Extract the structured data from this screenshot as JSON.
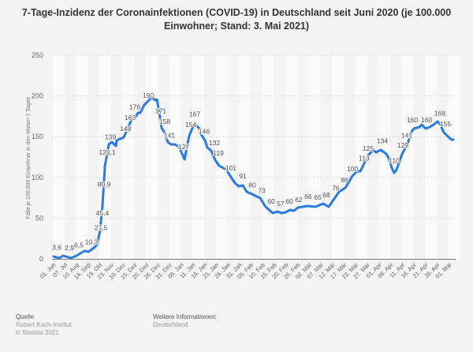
{
  "title": "7-Tage-Inzidenz der Coronainfektionen (COVID-19) in Deutschland seit Juni 2020 (je 100.000 Einwohner; Stand: 3. Mai 2021)",
  "footer": {
    "source_heading": "Quelle",
    "source": "Robert Koch-Institut",
    "copyright": "© Statista 2021",
    "info_heading": "Weitere Informationen:",
    "info": "Deutschland"
  },
  "chart_data": {
    "type": "line",
    "title": "7-Tage-Inzidenz der Coronainfektionen (COVID-19) in Deutschland seit Juni 2020 (je 100.000 Einwohner; Stand: 3. Mai 2021)",
    "xlabel": "",
    "ylabel": "Fälle je 100.000 Einwohner in den letzten 7 Tagen",
    "ylim": [
      0,
      250
    ],
    "yticks": [
      0,
      50,
      100,
      150,
      200,
      250
    ],
    "grid": true,
    "line_color": "#2a7be4",
    "categories": [
      "01. Jun",
      "07. Jul",
      "10. Aug",
      "14. Sep",
      "19. Okt",
      "23. Nov",
      "10. Dez",
      "15. Dez",
      "20. Dez",
      "26. Dez",
      "31. Dez",
      "06. Jan",
      "11. Jan",
      "16. Jan",
      "21. Jan",
      "26. Jan",
      "31. Jan",
      "05. Feb",
      "10. Feb",
      "15. Feb",
      "20. Feb",
      "25. Feb",
      "02. Mär",
      "07. Mär",
      "12. Mär",
      "17. Mär",
      "22. Mär",
      "27. Mär",
      "01. Apr",
      "06. Apr",
      "11. Apr",
      "16. Apr",
      "21. Apr",
      "26. Apr",
      "01. Mai"
    ],
    "series": [
      {
        "points": [
          [
            0,
            3
          ],
          [
            0.47,
            1
          ],
          [
            0.81,
            3.9
          ],
          [
            1.49,
            1
          ],
          [
            1.96,
            3.9
          ],
          [
            2.64,
            9.7
          ],
          [
            2.98,
            8.7
          ],
          [
            3.39,
            12.6
          ],
          [
            3.73,
            17.4
          ],
          [
            4.0,
            34.9
          ],
          [
            4.2,
            65.9
          ],
          [
            4.41,
            114.3
          ],
          [
            4.74,
            140.5
          ],
          [
            5.01,
            143.4
          ],
          [
            5.35,
            138.6
          ],
          [
            5.42,
            145.4
          ],
          [
            6.03,
            149.2
          ],
          [
            6.44,
            162.8
          ],
          [
            6.78,
            173.5
          ],
          [
            7.05,
            174.4
          ],
          [
            7.25,
            179.3
          ],
          [
            7.45,
            179.3
          ],
          [
            7.79,
            189
          ],
          [
            8.13,
            193.8
          ],
          [
            8.4,
            197.7
          ],
          [
            8.6,
            196.7
          ],
          [
            8.74,
            194.8
          ],
          [
            8.88,
            195.7
          ],
          [
            9.08,
            179.3
          ],
          [
            9.28,
            160.9
          ],
          [
            9.49,
            156
          ],
          [
            9.82,
            143.4
          ],
          [
            10.09,
            140.5
          ],
          [
            10.43,
            140.5
          ],
          [
            10.77,
            137.6
          ],
          [
            11.11,
            126.9
          ],
          [
            11.25,
            122.1
          ],
          [
            11.65,
            151.2
          ],
          [
            11.99,
            162.8
          ],
          [
            12.2,
            164.7
          ],
          [
            12.47,
            160.9
          ],
          [
            12.67,
            153.1
          ],
          [
            13.01,
            145.4
          ],
          [
            13.21,
            136.6
          ],
          [
            13.55,
            132.8
          ],
          [
            13.89,
            121.1
          ],
          [
            14.23,
            114.3
          ],
          [
            14.84,
            109.5
          ],
          [
            15.18,
            101.7
          ],
          [
            15.58,
            93
          ],
          [
            15.92,
            89.1
          ],
          [
            16.26,
            90.1
          ],
          [
            16.6,
            82.4
          ],
          [
            17.07,
            79.4
          ],
          [
            17.75,
            74.6
          ],
          [
            18.22,
            64
          ],
          [
            18.83,
            56.2
          ],
          [
            19.24,
            58.1
          ],
          [
            19.58,
            56.2
          ],
          [
            19.92,
            57.2
          ],
          [
            20.33,
            60.1
          ],
          [
            20.66,
            59.1
          ],
          [
            21.0,
            63
          ],
          [
            21.82,
            64.9
          ],
          [
            22.49,
            64
          ],
          [
            23.17,
            67.8
          ],
          [
            23.64,
            64
          ],
          [
            24.53,
            82.4
          ],
          [
            25.07,
            87.2
          ],
          [
            25.68,
            101.7
          ],
          [
            26.08,
            107.6
          ],
          [
            26.36,
            107.6
          ],
          [
            27.03,
            126.9
          ],
          [
            27.44,
            133.7
          ],
          [
            27.71,
            130.8
          ],
          [
            28.12,
            133.7
          ],
          [
            28.59,
            128.9
          ],
          [
            28.79,
            124
          ],
          [
            29.07,
            111.4
          ],
          [
            29.27,
            105.6
          ],
          [
            29.47,
            109.5
          ],
          [
            29.95,
            128.9
          ],
          [
            30.42,
            141.5
          ],
          [
            30.76,
            156
          ],
          [
            30.96,
            159.9
          ],
          [
            31.44,
            161.8
          ],
          [
            31.64,
            164.7
          ],
          [
            31.98,
            159.9
          ],
          [
            32.32,
            161.8
          ],
          [
            32.66,
            164.7
          ],
          [
            32.99,
            168.6
          ],
          [
            33.2,
            165.7
          ],
          [
            33.54,
            155
          ],
          [
            33.88,
            150.2
          ],
          [
            34.21,
            146.3
          ],
          [
            34.35,
            146.3
          ]
        ]
      }
    ],
    "data_labels": [
      {
        "x": 0.27,
        "text": "3,6"
      },
      {
        "x": 1.36,
        "text": "2,9"
      },
      {
        "x": 2.17,
        "text": "6,5"
      },
      {
        "x": 3.25,
        "text": "10,3"
      },
      {
        "x": 4.07,
        "text": "27,5"
      },
      {
        "x": 4.2,
        "text": "45,4"
      },
      {
        "x": 4.34,
        "text": "80,9"
      },
      {
        "x": 4.61,
        "text": "120,1"
      },
      {
        "x": 4.88,
        "text": "139"
      },
      {
        "x": 6.17,
        "text": "149"
      },
      {
        "x": 6.57,
        "text": "163"
      },
      {
        "x": 6.98,
        "text": "176"
      },
      {
        "x": 8.13,
        "text": "190"
      },
      {
        "x": 9.21,
        "text": "171"
      },
      {
        "x": 9.55,
        "text": "158"
      },
      {
        "x": 9.96,
        "text": "141"
      },
      {
        "x": 11.18,
        "text": "127"
      },
      {
        "x": 11.79,
        "text": "154"
      },
      {
        "x": 12.13,
        "text": "167"
      },
      {
        "x": 12.94,
        "text": "146"
      },
      {
        "x": 13.82,
        "text": "132"
      },
      {
        "x": 14.16,
        "text": "119"
      },
      {
        "x": 15.24,
        "text": "101"
      },
      {
        "x": 16.26,
        "text": "91"
      },
      {
        "x": 17.07,
        "text": "80"
      },
      {
        "x": 17.89,
        "text": "73"
      },
      {
        "x": 18.7,
        "text": "60"
      },
      {
        "x": 19.5,
        "text": "57"
      },
      {
        "x": 20.26,
        "text": "60"
      },
      {
        "x": 21.07,
        "text": "62"
      },
      {
        "x": 21.88,
        "text": "66"
      },
      {
        "x": 22.7,
        "text": "65"
      },
      {
        "x": 23.44,
        "text": "68"
      },
      {
        "x": 24.25,
        "text": "76"
      },
      {
        "x": 25.0,
        "text": "86"
      },
      {
        "x": 25.68,
        "text": "100"
      },
      {
        "x": 26.69,
        "text": "113"
      },
      {
        "x": 27.03,
        "text": "125"
      },
      {
        "x": 28.25,
        "text": "134"
      },
      {
        "x": 29.27,
        "text": "110"
      },
      {
        "x": 30.01,
        "text": "129"
      },
      {
        "x": 30.35,
        "text": "141"
      },
      {
        "x": 30.83,
        "text": "160"
      },
      {
        "x": 32.05,
        "text": "160"
      },
      {
        "x": 33.2,
        "text": "168"
      },
      {
        "x": 33.67,
        "text": "155"
      }
    ]
  }
}
